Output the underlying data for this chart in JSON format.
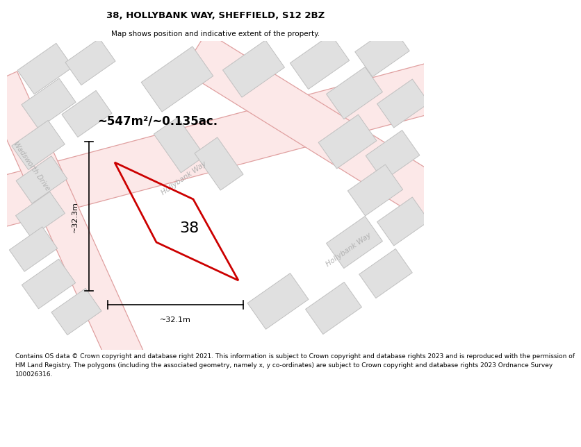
{
  "title": "38, HOLLYBANK WAY, SHEFFIELD, S12 2BZ",
  "subtitle": "Map shows position and indicative extent of the property.",
  "footer_line1": "Contains OS data © Crown copyright and database right 2021. This information is subject to Crown copyright and database rights 2023 and is reproduced with the permission of",
  "footer_line2": "HM Land Registry. The polygons (including the associated geometry, namely x, y co-ordinates) are subject to Crown copyright and database rights 2023 Ordnance Survey",
  "footer_line3": "100026316.",
  "area_text": "~547m²/~0.135ac.",
  "property_number": "38",
  "dim_width": "~32.1m",
  "dim_height": "~32.3m",
  "map_bg": "#ffffff",
  "outer_bg": "#eeeeee",
  "road_fill": "#fce8e8",
  "road_outline": "#e0a0a0",
  "building_fill": "#e0e0e0",
  "building_edge": "#c0c0c0",
  "property_color": "#cc0000",
  "property_lw": 2.0,
  "dim_color": "#000000",
  "road_label_color": "#b0b0b0",
  "title_fontsize": 9.5,
  "subtitle_fontsize": 7.5,
  "footer_fontsize": 6.5,
  "area_fontsize": 12,
  "number_fontsize": 16,
  "dim_fontsize": 8,
  "road_label_fontsize": 7.5
}
